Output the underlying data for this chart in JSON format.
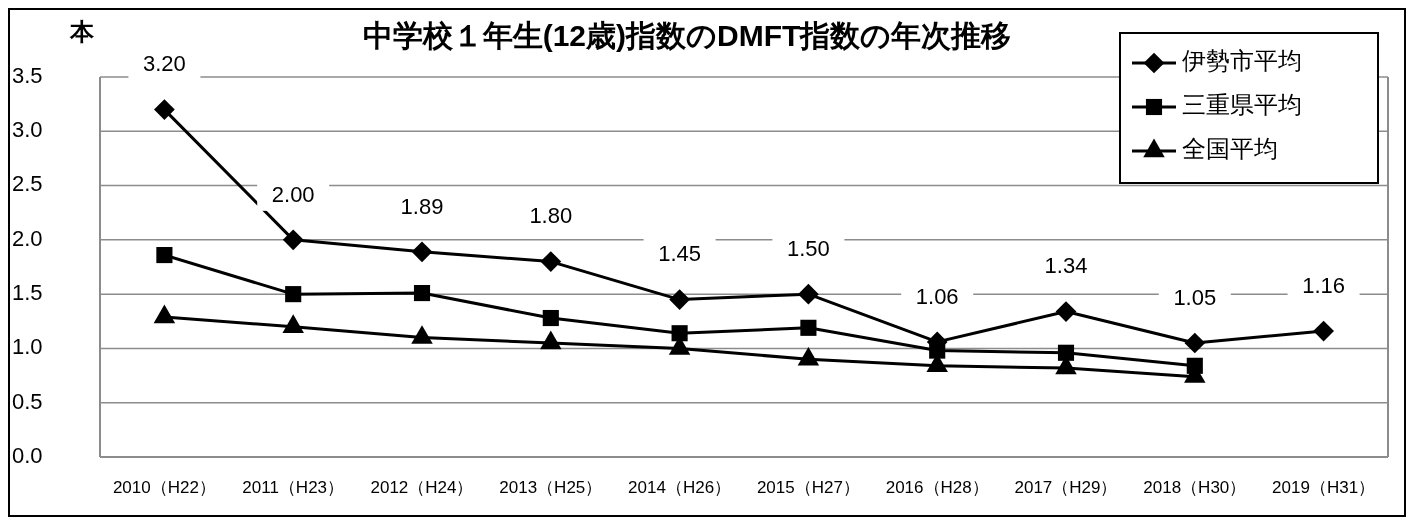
{
  "chart_data": {
    "type": "line",
    "title": "中学校１年生(12歳)指数のDMFT指数の年次推移",
    "ylabel": "本",
    "categories": [
      "2010（H22）",
      "2011（H23）",
      "2012（H24）",
      "2013（H25）",
      "2014（H26）",
      "2015（H27）",
      "2016（H28）",
      "2017（H29）",
      "2018（H30）",
      "2019（H31）"
    ],
    "series": [
      {
        "name": "伊勢市平均",
        "color": "#000000",
        "marker": "diamond",
        "values": [
          3.2,
          2.0,
          1.89,
          1.8,
          1.45,
          1.5,
          1.06,
          1.34,
          1.05,
          1.16
        ],
        "value_labels": [
          "3.20",
          "2.00",
          "1.89",
          "1.80",
          "1.45",
          "1.50",
          "1.06",
          "1.34",
          "1.05",
          "1.16"
        ]
      },
      {
        "name": "三重県平均",
        "color": "#000000",
        "marker": "square",
        "values": [
          1.86,
          1.5,
          1.51,
          1.28,
          1.14,
          1.19,
          0.98,
          0.96,
          0.84,
          null
        ]
      },
      {
        "name": "全国平均",
        "color": "#000000",
        "marker": "triangle",
        "values": [
          1.29,
          1.2,
          1.1,
          1.05,
          1.0,
          0.9,
          0.84,
          0.82,
          0.74,
          null
        ]
      }
    ],
    "ylim": [
      0,
      3.5
    ],
    "yticks": [
      {
        "value": 0,
        "label": "0.0"
      },
      {
        "value": 0.5,
        "label": "0.5"
      },
      {
        "value": 1,
        "label": "1.0"
      },
      {
        "value": 1.5,
        "label": "1.5"
      },
      {
        "value": 2,
        "label": "2.0"
      },
      {
        "value": 2.5,
        "label": "2.5"
      },
      {
        "value": 3,
        "label": "3.0"
      },
      {
        "value": 3.5,
        "label": "3.5"
      }
    ],
    "grid": "y",
    "legend": "top right",
    "line_style": "solid"
  }
}
